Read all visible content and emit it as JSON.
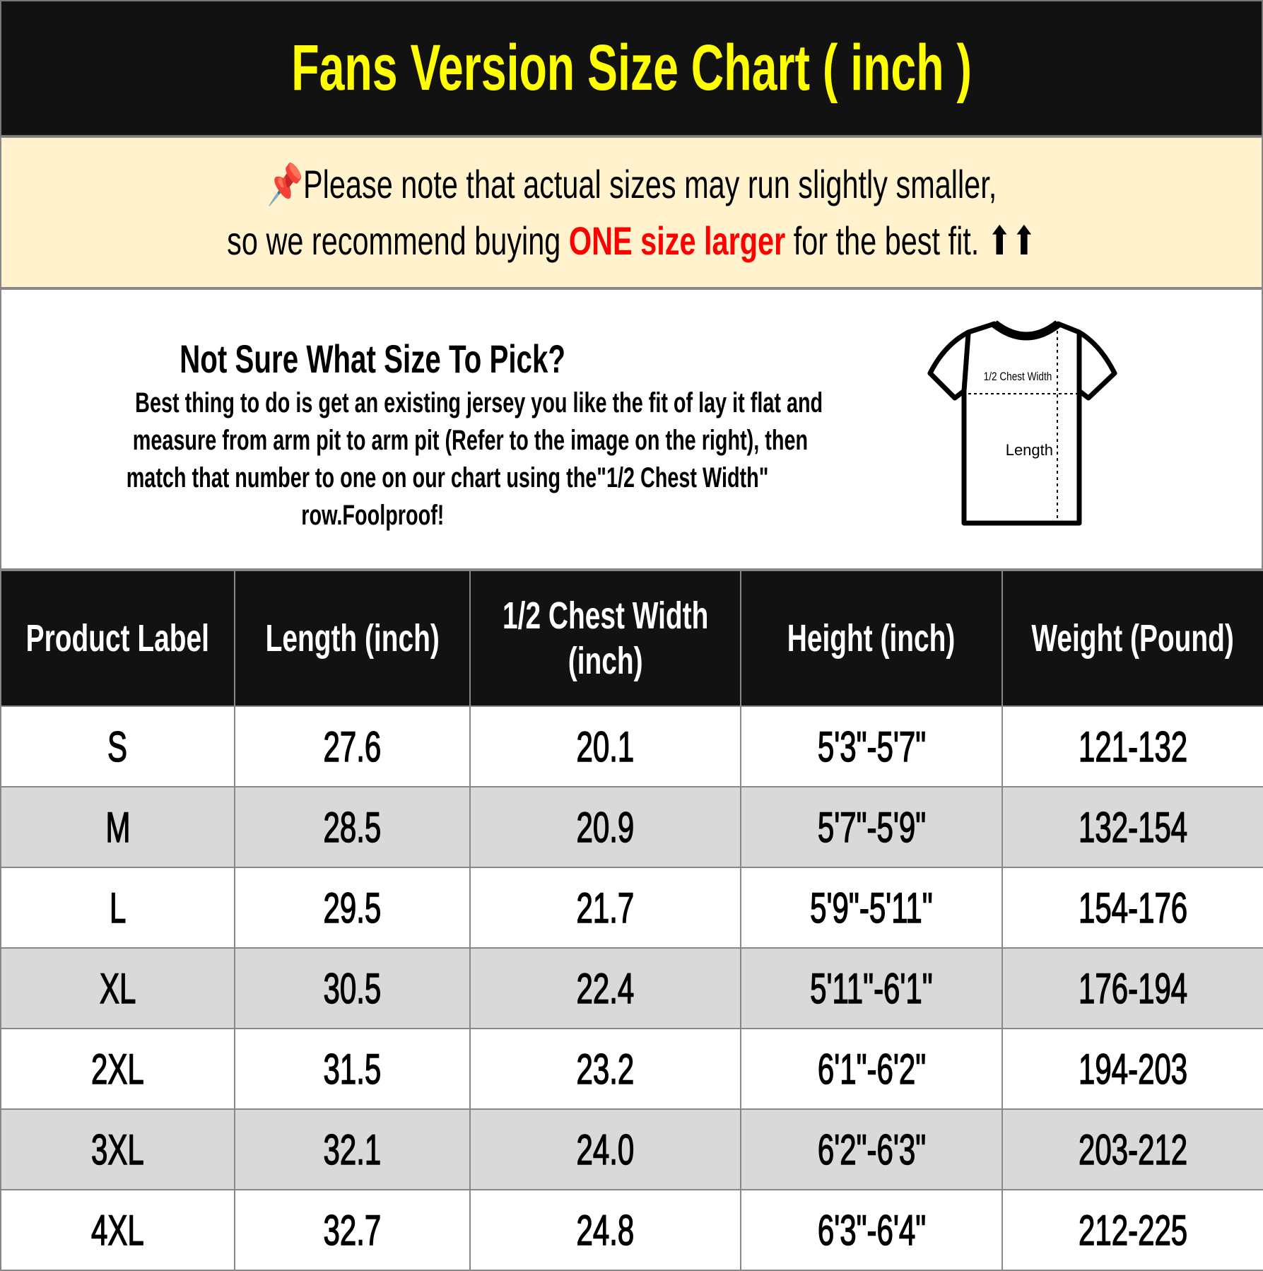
{
  "title": "Fans Version Size Chart ( inch )",
  "note": {
    "icon": "pushpin-icon",
    "line1": "Please note that actual sizes may run slightly smaller,",
    "line2_pre": "so we recommend buying ",
    "line2_highlight": "ONE size larger",
    "line2_post": " for the best fit. ",
    "arrows": "⬆⬆"
  },
  "info": {
    "heading": "Not Sure What Size To Pick?",
    "lines": [
      "Best thing to do is get an existing jersey you like the fit of lay it flat and",
      "measure from arm pit to arm pit (Refer to the image on the right), then",
      "match that number to one on our chart using the\"1/2 Chest Width\"",
      "row.Foolproof!"
    ],
    "diagram": {
      "chest_label": "1/2 Chest Width",
      "length_label": "Length"
    }
  },
  "table": {
    "headers": [
      "Product Label",
      "Length (inch)",
      "1/2 Chest Width (inch)",
      "Height (inch)",
      "Weight (Pound)"
    ],
    "rows": [
      [
        "S",
        "27.6",
        "20.1",
        "5'3\"-5'7\"",
        "121-132"
      ],
      [
        "M",
        "28.5",
        "20.9",
        "5'7\"-5'9\"",
        "132-154"
      ],
      [
        "L",
        "29.5",
        "21.7",
        "5'9\"-5'11\"",
        "154-176"
      ],
      [
        "XL",
        "30.5",
        "22.4",
        "5'11\"-6'1\"",
        "176-194"
      ],
      [
        "2XL",
        "31.5",
        "23.2",
        "6'1\"-6'2\"",
        "194-203"
      ],
      [
        "3XL",
        "32.1",
        "24.0",
        "6'2\"-6'3\"",
        "203-212"
      ],
      [
        "4XL",
        "32.7",
        "24.8",
        "6'3\"-6'4\"",
        "212-225"
      ]
    ]
  },
  "colors": {
    "title_bg": "#121212",
    "title_text": "#ffff00",
    "note_bg": "#fff2cc",
    "highlight": "#ff0000",
    "alt_row": "#d9d9d9"
  }
}
